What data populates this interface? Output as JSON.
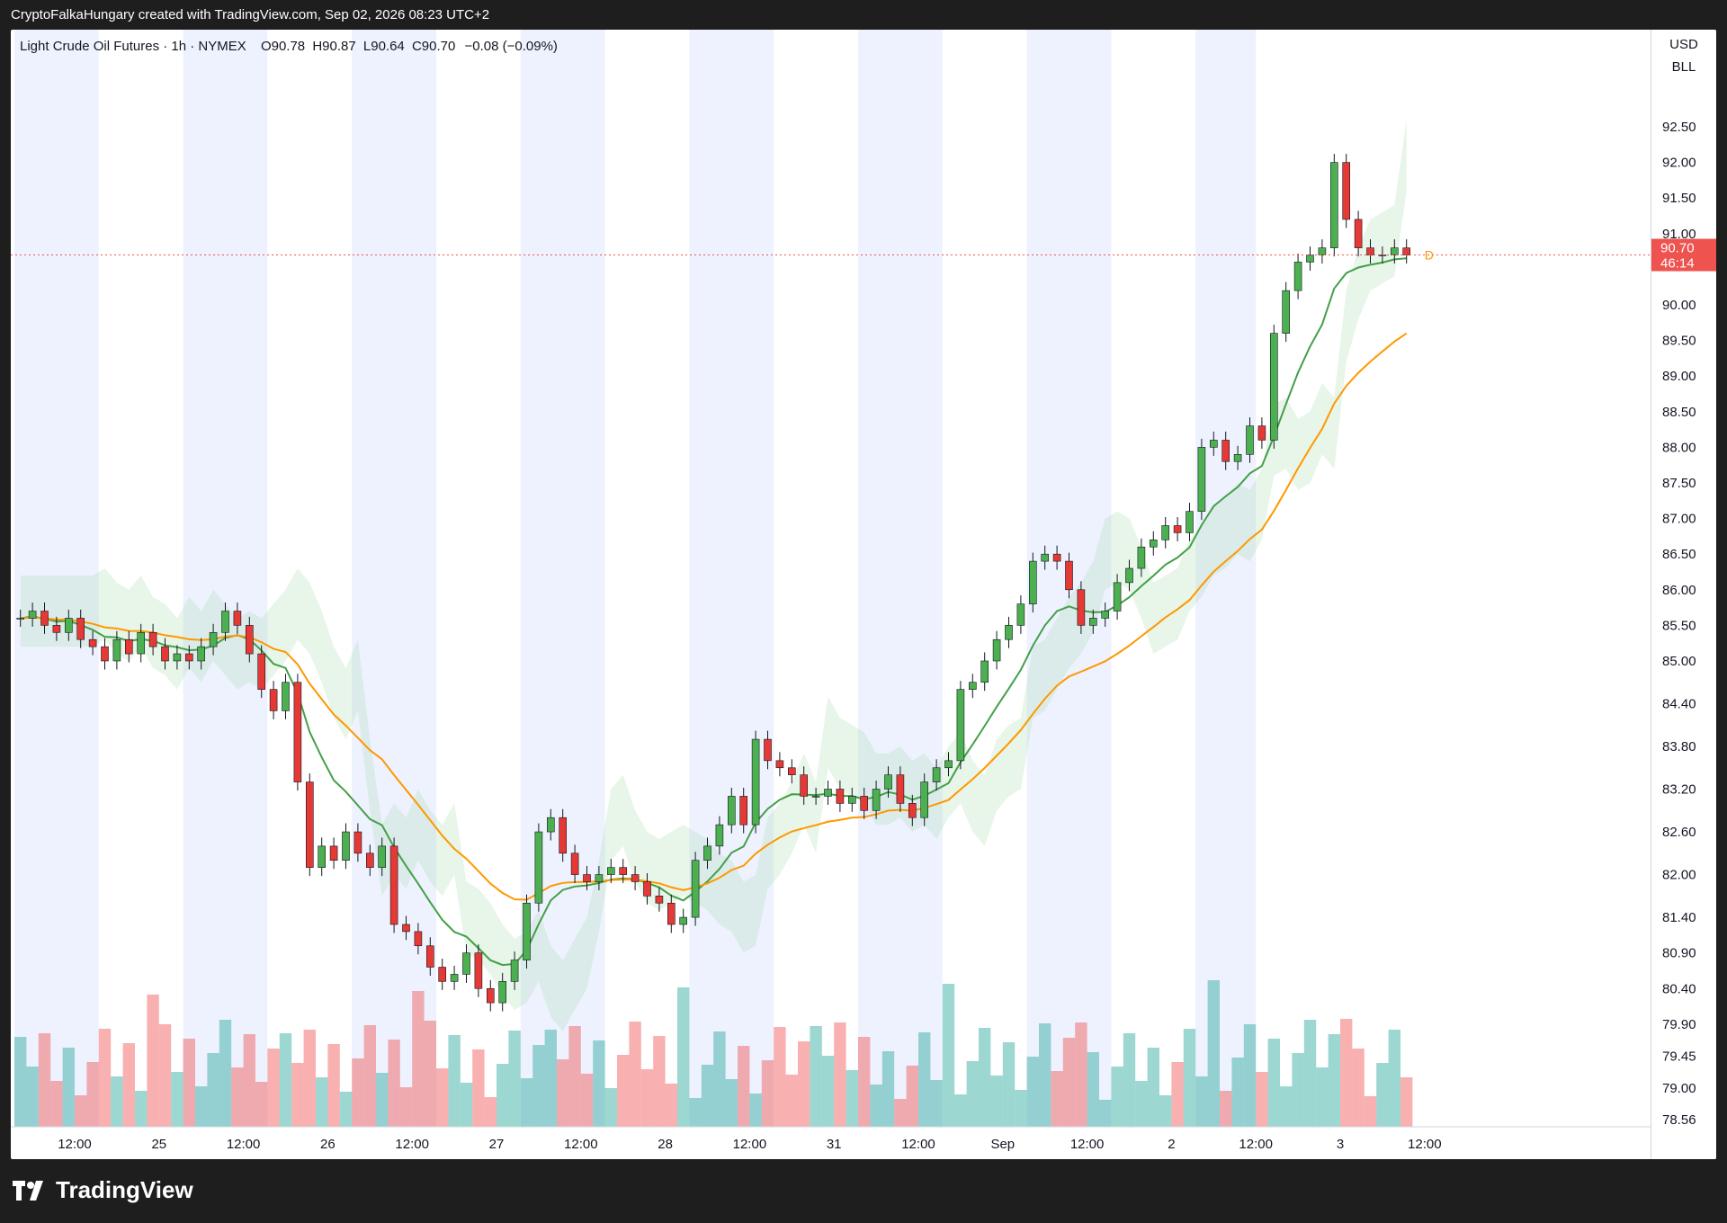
{
  "header": {
    "caption": "CryptoFalkaHungary created with TradingView.com, Sep 02, 2026 08:23 UTC+2"
  },
  "legend": {
    "symbol": "Light Crude Oil Futures · 1h · NYMEX",
    "o_label": "O",
    "o": "90.78",
    "h_label": "H",
    "h": "90.87",
    "l_label": "L",
    "l": "90.64",
    "c_label": "C",
    "c": "90.70",
    "change": "−0.08 (−0.09%)"
  },
  "axis": {
    "currency": "USD",
    "unit": "BLL",
    "last_price": "90.70",
    "countdown": "46:14",
    "marker": "D"
  },
  "footer": {
    "brand": "TradingView"
  },
  "colors": {
    "up": "#26a69a",
    "down": "#ef5350",
    "candle_up": "#4caf50",
    "candle_down": "#e53935",
    "ema_fast": "#43a047",
    "ema_slow": "#ff9800",
    "cloud_up": "#a5d6a7",
    "cloud_down": "#f48fb1",
    "session_band": "#eef2ff",
    "volume_ma": "#26c6da"
  },
  "chart_data": {
    "type": "candlestick",
    "title": "Light Crude Oil Futures · 1h · NYMEX",
    "price_ticks": [
      "92.50",
      "92.00",
      "91.50",
      "91.00",
      "90.00",
      "89.50",
      "89.00",
      "88.50",
      "88.00",
      "87.50",
      "87.00",
      "86.50",
      "86.00",
      "85.50",
      "85.00",
      "84.40",
      "83.80",
      "83.20",
      "82.60",
      "82.00",
      "81.40",
      "80.90",
      "80.40",
      "79.90",
      "79.45",
      "79.00",
      "78.56"
    ],
    "time_ticks": [
      "12:00",
      "25",
      "12:00",
      "26",
      "12:00",
      "27",
      "12:00",
      "28",
      "12:00",
      "31",
      "12:00",
      "Sep",
      "12:00",
      "2",
      "12:00",
      "3",
      "12:00"
    ],
    "time_tick_slots": [
      5,
      12,
      19,
      26,
      33,
      40,
      47,
      54,
      61,
      68,
      75,
      82,
      89,
      96,
      103,
      110,
      117
    ],
    "price_range": [
      78.56,
      92.5
    ],
    "closes": [
      85.6,
      85.7,
      85.5,
      85.4,
      85.6,
      85.3,
      85.2,
      85.0,
      85.3,
      85.1,
      85.4,
      85.2,
      85.0,
      85.1,
      85.0,
      85.2,
      85.4,
      85.7,
      85.5,
      85.1,
      84.6,
      84.3,
      84.7,
      83.3,
      82.1,
      82.4,
      82.2,
      82.6,
      82.3,
      82.1,
      82.4,
      81.3,
      81.2,
      81.0,
      80.7,
      80.5,
      80.6,
      80.9,
      80.4,
      80.2,
      80.5,
      80.8,
      81.6,
      82.6,
      82.8,
      82.3,
      82.0,
      81.9,
      82.0,
      82.1,
      82.0,
      81.9,
      81.7,
      81.6,
      81.3,
      81.4,
      82.2,
      82.4,
      82.7,
      83.1,
      82.7,
      83.9,
      83.6,
      83.5,
      83.4,
      83.1,
      83.1,
      83.2,
      83.0,
      83.1,
      82.9,
      83.2,
      83.4,
      83.0,
      82.8,
      83.3,
      83.5,
      83.6,
      84.6,
      84.7,
      85.0,
      85.3,
      85.5,
      85.8,
      86.4,
      86.5,
      86.4,
      86.0,
      85.5,
      85.6,
      85.7,
      86.1,
      86.3,
      86.6,
      86.7,
      86.9,
      86.8,
      87.1,
      88.0,
      88.1,
      87.8,
      87.9,
      88.3,
      88.1,
      89.6,
      90.2,
      90.6,
      90.7,
      90.8,
      92.0,
      91.2,
      90.8,
      90.7,
      90.7,
      90.8,
      90.7
    ],
    "volume_ma_label": "",
    "grid": false
  }
}
